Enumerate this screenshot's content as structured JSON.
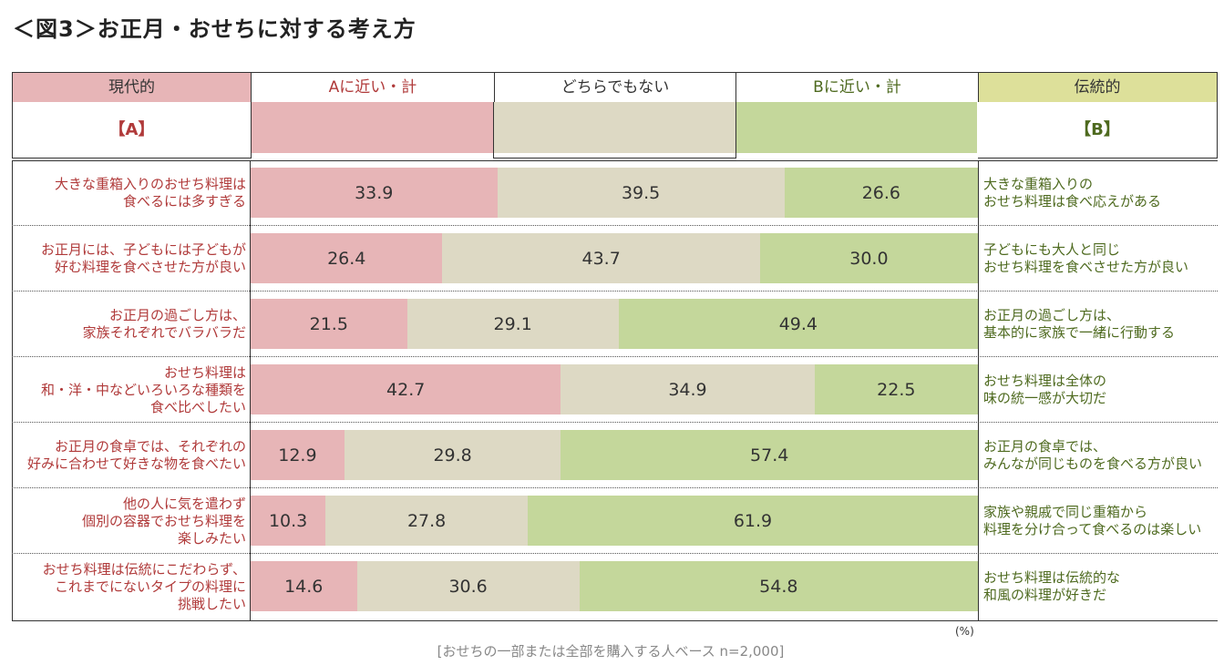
{
  "title": "＜図3＞お正月・おせちに対する考え方",
  "header": {
    "left_band": "現代的",
    "left_code": "【A】",
    "right_band": "伝統的",
    "right_code": "【B】"
  },
  "colors": {
    "a_near": "#e7b5b7",
    "neither": "#ddd9c4",
    "b_near": "#c4d79b",
    "left_text": "#b03a3a",
    "right_text": "#4e6a1f",
    "left_band": "#e7b5b7",
    "right_band": "#dde09a"
  },
  "chart_data": {
    "type": "bar",
    "orientation": "horizontal-stacked-100",
    "unit": "(%)",
    "note": "[おせちの一部または全部を購入する人ベース n=2,000]",
    "series": [
      {
        "name": "Aに近い・計",
        "values": [
          33.9,
          26.4,
          21.5,
          42.7,
          12.9,
          10.3,
          14.6
        ]
      },
      {
        "name": "どちらでもない",
        "values": [
          39.5,
          43.7,
          29.1,
          34.9,
          29.8,
          27.8,
          30.6
        ]
      },
      {
        "name": "Bに近い・計",
        "values": [
          26.6,
          30.0,
          49.4,
          22.5,
          57.4,
          61.9,
          54.8
        ]
      }
    ],
    "labels_value": [
      [
        "33.9",
        "39.5",
        "26.6"
      ],
      [
        "26.4",
        "43.7",
        "30.0"
      ],
      [
        "21.5",
        "29.1",
        "49.4"
      ],
      [
        "42.7",
        "34.9",
        "22.5"
      ],
      [
        "12.9",
        "29.8",
        "57.4"
      ],
      [
        "10.3",
        "27.8",
        "61.9"
      ],
      [
        "14.6",
        "30.6",
        "54.8"
      ]
    ],
    "categories_a": [
      "大きな重箱入りのおせち料理は\n食べるには多すぎる",
      "お正月には、子どもには子どもが\n好む料理を食べさせた方が良い",
      "お正月の過ごし方は、\n家族それぞれでバラバラだ",
      "おせち料理は\n和・洋・中などいろいろな種類を\n食べ比べしたい",
      "お正月の食卓では、それぞれの\n好みに合わせて好きな物を食べたい",
      "他の人に気を遣わず\n個別の容器でおせち料理を\n楽しみたい",
      "おせち料理は伝統にこだわらず、\nこれまでにないタイプの料理に\n挑戦したい"
    ],
    "categories_b": [
      "大きな重箱入りの\nおせち料理は食べ応えがある",
      "子どもにも大人と同じ\nおせち料理を食べさせた方が良い",
      "お正月の過ごし方は、\n基本的に家族で一緒に行動する",
      "おせち料理は全体の\n味の統一感が大切だ",
      "お正月の食卓では、\nみんなが同じものを食べる方が良い",
      "家族や親戚で同じ重箱から\n料理を分け合って食べるのは楽しい",
      "おせち料理は伝統的な\n和風の料理が好きだ"
    ]
  }
}
